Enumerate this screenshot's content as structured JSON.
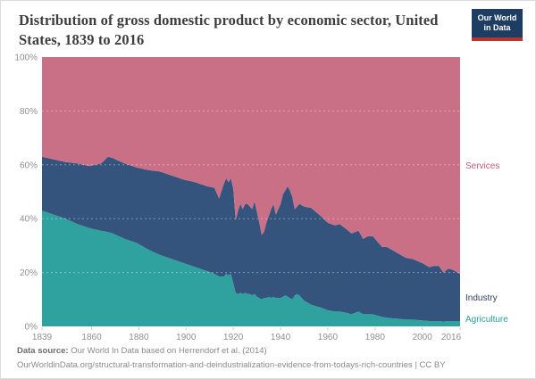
{
  "header": {
    "title_line1": "Distribution of gross domestic product by economic sector, United",
    "title_line2": "States, 1839 to 2016",
    "logo_line1": "Our World",
    "logo_line2": "in Data",
    "logo_bg": "#1d3d63",
    "logo_accent": "#b5342d"
  },
  "footer": {
    "source_label": "Data source:",
    "source_text": " Our World In Data based on Herrendorf et al. (2014)",
    "url_line": "OurWorldinData.org/structural-transformation-and-deindustrialization-evidence-from-todays-rich-countries | CC BY"
  },
  "chart_data": {
    "type": "area",
    "stacked": true,
    "unit": "%",
    "title": "Distribution of gross domestic product by economic sector, United States, 1839 to 2016",
    "xlabel": "",
    "ylabel": "",
    "xlim": [
      1839,
      2016
    ],
    "ylim": [
      0,
      100
    ],
    "grid": true,
    "legend_position": "right-edge-labels",
    "yticks": [
      0,
      20,
      40,
      60,
      80,
      100
    ],
    "ytick_labels": [
      "0%",
      "20%",
      "40%",
      "60%",
      "80%",
      "100%"
    ],
    "xticks": [
      1839,
      1860,
      1880,
      1900,
      1920,
      1940,
      1960,
      1980,
      2000,
      2016
    ],
    "x": [
      1839,
      1844,
      1849,
      1854,
      1859,
      1864,
      1867,
      1869,
      1874,
      1879,
      1884,
      1889,
      1894,
      1899,
      1904,
      1909,
      1912,
      1914,
      1916,
      1917,
      1918,
      1919,
      1920,
      1921,
      1922,
      1923,
      1924,
      1925,
      1926,
      1927,
      1928,
      1929,
      1930,
      1931,
      1932,
      1933,
      1934,
      1935,
      1936,
      1937,
      1938,
      1939,
      1940,
      1941,
      1942,
      1943,
      1944,
      1945,
      1946,
      1947,
      1948,
      1950,
      1953,
      1955,
      1957,
      1960,
      1963,
      1965,
      1968,
      1970,
      1973,
      1975,
      1977,
      1979,
      1981,
      1983,
      1985,
      1987,
      1990,
      1993,
      1996,
      2000,
      2003,
      2005,
      2007,
      2009,
      2011,
      2013,
      2016
    ],
    "series": [
      {
        "name": "Agriculture",
        "color": "#2fa2a0",
        "label_color": "#2b9e9b",
        "values": [
          43,
          41.5,
          40,
          38,
          36.5,
          35.5,
          35,
          34.5,
          32.5,
          31,
          28.5,
          26.5,
          25,
          23.5,
          22,
          20.5,
          19.5,
          18.5,
          18.5,
          19.5,
          19,
          19.5,
          16,
          12.5,
          12,
          12.5,
          12,
          12.5,
          12,
          12,
          11.5,
          12,
          11,
          10.5,
          10,
          10.5,
          10.5,
          11,
          10.5,
          11,
          10.5,
          10.5,
          10.5,
          11,
          11.5,
          11,
          10.5,
          10,
          11.5,
          12,
          11.5,
          9.5,
          8,
          7.5,
          7,
          6,
          5.5,
          5.5,
          5,
          4.5,
          5.5,
          4.5,
          4.5,
          4.5,
          4,
          3.5,
          3.2,
          3,
          2.8,
          2.5,
          2.5,
          2.2,
          2,
          2,
          2,
          1.8,
          2,
          2,
          2
        ]
      },
      {
        "name": "Industry",
        "color": "#35547d",
        "label_color": "#32415c",
        "values": [
          20,
          20.5,
          21,
          22.5,
          23,
          25,
          28,
          28,
          28,
          28,
          29.5,
          31,
          31,
          31,
          31.5,
          31.5,
          32,
          29,
          34.5,
          35.5,
          34.5,
          35.5,
          35,
          27,
          31,
          33,
          31.5,
          33,
          33.5,
          32.5,
          32,
          34.5,
          31.5,
          28,
          24,
          24.5,
          28,
          30,
          33,
          34.5,
          31,
          33,
          35,
          38,
          39,
          41,
          40,
          38,
          32,
          32.5,
          34,
          35,
          36,
          35,
          34,
          32.5,
          32,
          32.5,
          31,
          30,
          30,
          28,
          29,
          29,
          27.5,
          26,
          26.3,
          25.5,
          24.2,
          23,
          22.5,
          21.3,
          20,
          20.5,
          20.5,
          18.2,
          19.5,
          19,
          17.5
        ]
      },
      {
        "name": "Services",
        "color": "#c97087",
        "label_color": "#c05c77",
        "values": [
          37,
          38,
          39,
          39.5,
          40.5,
          39.5,
          37,
          37.5,
          39.5,
          41,
          42,
          42.5,
          44,
          45.5,
          46.5,
          48,
          48.5,
          52.5,
          47,
          45,
          46.5,
          45,
          49,
          60.5,
          57,
          54.5,
          56.5,
          54.5,
          54.5,
          55.5,
          56.5,
          53.5,
          57.5,
          61.5,
          66,
          65,
          61.5,
          59,
          56.5,
          54.5,
          58.5,
          56.5,
          54.5,
          51,
          49.5,
          48,
          49.5,
          52,
          56.5,
          55.5,
          54.5,
          55.5,
          56,
          57.5,
          59,
          61.5,
          62.5,
          62,
          64,
          65.5,
          64.5,
          67.5,
          66.5,
          66.5,
          68.5,
          70.5,
          70.5,
          71.5,
          73,
          74.5,
          75,
          76.5,
          78,
          77.5,
          77.5,
          80,
          78.5,
          79,
          80.5
        ]
      }
    ]
  }
}
